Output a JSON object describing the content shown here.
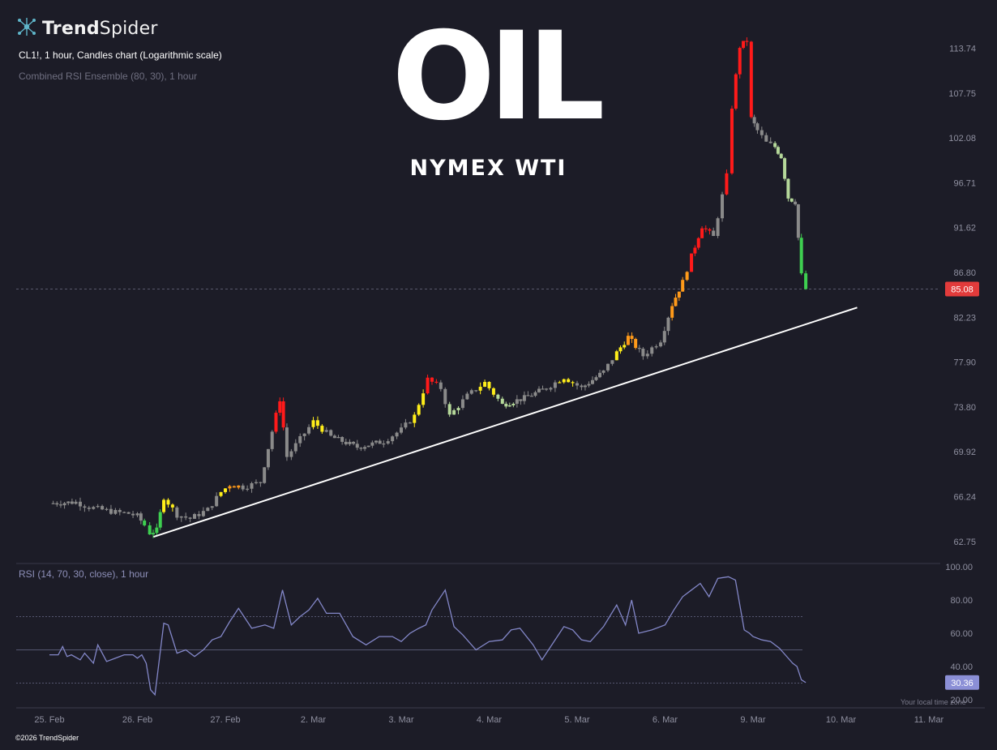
{
  "brand": {
    "name_bold": "Trend",
    "name_light": "Spider"
  },
  "header": {
    "chart_info": "CL1!, 1 hour, Candles chart (Logarithmic scale)",
    "indicator_info": "Combined RSI Ensemble (80, 30), 1 hour"
  },
  "overlay": {
    "title": "OIL",
    "subtitle": "NYMEX WTI"
  },
  "footer": {
    "copyright": "©2026 TrendSpider",
    "timezone_note": "Your local time zone"
  },
  "colors": {
    "background": "#1c1c27",
    "candle_neutral": "#8a8a8a",
    "candle_red": "#ff1a1a",
    "candle_orange": "#ff9a1a",
    "candle_yellow": "#ffee1a",
    "candle_green": "#3ecf50",
    "candle_lightgreen": "#b5d89a",
    "rsi_line": "#8387c8",
    "price_badge": "#e23b3b",
    "rsi_badge": "#8b8fd6"
  },
  "chart_data": [
    {
      "type": "candlestick",
      "title": "CL1!, 1 hour, Candles chart (Logarithmic scale)",
      "y_scale": "log",
      "y_ticks": [
        62.75,
        66.24,
        69.92,
        73.8,
        77.9,
        82.23,
        86.8,
        91.62,
        96.71,
        102.08,
        107.75,
        113.74
      ],
      "ylim": [
        61.4,
        118.0
      ],
      "x_ticks": [
        "25. Feb",
        "26. Feb",
        "27. Feb",
        "2. Mar",
        "3. Mar",
        "4. Mar",
        "5. Mar",
        "6. Mar",
        "9. Mar",
        "10. Mar",
        "11. Mar"
      ],
      "last_price": 85.08,
      "current_price_line": 85.08,
      "trendline": {
        "from": {
          "x": "26. Feb",
          "y": 63.1
        },
        "to": {
          "x": "10. Mar",
          "y": 83.2
        }
      },
      "path_points": [
        {
          "x": 0.0,
          "y": 65.7,
          "c": "n"
        },
        {
          "x": 0.3,
          "y": 65.8,
          "c": "n"
        },
        {
          "x": 0.45,
          "y": 65.4,
          "c": "n"
        },
        {
          "x": 0.6,
          "y": 65.2,
          "c": "n"
        },
        {
          "x": 0.75,
          "y": 65.0,
          "c": "n"
        },
        {
          "x": 0.9,
          "y": 64.9,
          "c": "n"
        },
        {
          "x": 1.0,
          "y": 64.7,
          "c": "n"
        },
        {
          "x": 1.08,
          "y": 64.0,
          "c": "g"
        },
        {
          "x": 1.14,
          "y": 63.4,
          "c": "g"
        },
        {
          "x": 1.22,
          "y": 63.6,
          "c": "g"
        },
        {
          "x": 1.3,
          "y": 66.2,
          "c": "y"
        },
        {
          "x": 1.45,
          "y": 64.8,
          "c": "n"
        },
        {
          "x": 1.6,
          "y": 64.5,
          "c": "n"
        },
        {
          "x": 1.8,
          "y": 65.2,
          "c": "n"
        },
        {
          "x": 1.95,
          "y": 66.6,
          "c": "y"
        },
        {
          "x": 2.05,
          "y": 67.2,
          "c": "o"
        },
        {
          "x": 2.2,
          "y": 67.0,
          "c": "n"
        },
        {
          "x": 2.4,
          "y": 67.4,
          "c": "n"
        },
        {
          "x": 2.62,
          "y": 74.5,
          "c": "r"
        },
        {
          "x": 2.7,
          "y": 69.5,
          "c": "n"
        },
        {
          "x": 2.85,
          "y": 71.0,
          "c": "n"
        },
        {
          "x": 3.0,
          "y": 72.5,
          "c": "y"
        },
        {
          "x": 3.2,
          "y": 71.2,
          "c": "n"
        },
        {
          "x": 3.5,
          "y": 70.3,
          "c": "n"
        },
        {
          "x": 3.8,
          "y": 70.8,
          "c": "n"
        },
        {
          "x": 4.0,
          "y": 71.8,
          "c": "n"
        },
        {
          "x": 4.15,
          "y": 73.0,
          "c": "y"
        },
        {
          "x": 4.3,
          "y": 76.3,
          "c": "r"
        },
        {
          "x": 4.45,
          "y": 75.5,
          "c": "n"
        },
        {
          "x": 4.55,
          "y": 73.0,
          "c": "lg"
        },
        {
          "x": 4.75,
          "y": 74.8,
          "c": "n"
        },
        {
          "x": 4.95,
          "y": 76.0,
          "c": "y"
        },
        {
          "x": 5.15,
          "y": 74.0,
          "c": "lg"
        },
        {
          "x": 5.4,
          "y": 74.6,
          "c": "n"
        },
        {
          "x": 5.65,
          "y": 75.5,
          "c": "n"
        },
        {
          "x": 5.85,
          "y": 76.5,
          "c": "y"
        },
        {
          "x": 6.05,
          "y": 75.5,
          "c": "n"
        },
        {
          "x": 6.3,
          "y": 77.0,
          "c": "n"
        },
        {
          "x": 6.45,
          "y": 78.8,
          "c": "y"
        },
        {
          "x": 6.58,
          "y": 80.3,
          "c": "o"
        },
        {
          "x": 6.75,
          "y": 78.5,
          "c": "n"
        },
        {
          "x": 6.95,
          "y": 80.0,
          "c": "n"
        },
        {
          "x": 7.08,
          "y": 83.5,
          "c": "o"
        },
        {
          "x": 7.2,
          "y": 85.8,
          "c": "o"
        },
        {
          "x": 7.3,
          "y": 88.5,
          "c": "r"
        },
        {
          "x": 7.42,
          "y": 91.8,
          "c": "r"
        },
        {
          "x": 7.55,
          "y": 90.6,
          "c": "n"
        },
        {
          "x": 7.7,
          "y": 97.5,
          "c": "r"
        },
        {
          "x": 7.76,
          "y": 106.0,
          "c": "r"
        },
        {
          "x": 7.85,
          "y": 114.0,
          "c": "r"
        },
        {
          "x": 7.93,
          "y": 114.8,
          "c": "r"
        },
        {
          "x": 7.98,
          "y": 104.5,
          "c": "n"
        },
        {
          "x": 8.05,
          "y": 103.0,
          "c": "n"
        },
        {
          "x": 8.15,
          "y": 101.5,
          "c": "n"
        },
        {
          "x": 8.25,
          "y": 101.0,
          "c": "lg"
        },
        {
          "x": 8.32,
          "y": 99.8,
          "c": "lg"
        },
        {
          "x": 8.4,
          "y": 95.0,
          "c": "lg"
        },
        {
          "x": 8.48,
          "y": 94.5,
          "c": "n"
        },
        {
          "x": 8.55,
          "y": 86.5,
          "c": "g"
        },
        {
          "x": 8.6,
          "y": 85.08,
          "c": "g"
        }
      ]
    },
    {
      "type": "line",
      "title": "RSI (14, 70, 30, close), 1 hour",
      "ylim": [
        20,
        100
      ],
      "y_ticks": [
        20.0,
        40.0,
        60.0,
        80.0,
        100.0
      ],
      "levels": [
        70,
        50,
        30
      ],
      "last_value": 30.36,
      "x": [
        0.0,
        0.1,
        0.15,
        0.2,
        0.25,
        0.35,
        0.4,
        0.5,
        0.55,
        0.65,
        0.75,
        0.85,
        0.95,
        1.0,
        1.05,
        1.1,
        1.15,
        1.2,
        1.3,
        1.35,
        1.45,
        1.55,
        1.65,
        1.75,
        1.85,
        1.95,
        2.05,
        2.15,
        2.3,
        2.45,
        2.55,
        2.65,
        2.75,
        2.85,
        2.95,
        3.05,
        3.15,
        3.3,
        3.45,
        3.6,
        3.75,
        3.9,
        4.0,
        4.1,
        4.2,
        4.28,
        4.35,
        4.5,
        4.6,
        4.7,
        4.85,
        5.0,
        5.15,
        5.25,
        5.35,
        5.5,
        5.6,
        5.7,
        5.85,
        5.95,
        6.05,
        6.15,
        6.3,
        6.45,
        6.55,
        6.62,
        6.7,
        6.85,
        7.0,
        7.1,
        7.2,
        7.3,
        7.4,
        7.5,
        7.6,
        7.72,
        7.8,
        7.9,
        7.96,
        8.0,
        8.1,
        8.2,
        8.3,
        8.4,
        8.45,
        8.5,
        8.55,
        8.6
      ],
      "y": [
        47,
        47,
        52,
        46,
        47,
        44,
        48,
        42,
        53,
        43,
        45,
        47,
        47,
        45,
        47,
        42,
        26,
        23,
        66,
        65,
        48,
        50,
        46,
        50,
        56,
        58,
        67,
        75,
        63,
        65,
        63,
        86,
        65,
        70,
        74,
        81,
        72,
        72,
        58,
        53,
        58,
        58,
        55,
        60,
        63,
        65,
        74,
        86,
        64,
        59,
        50,
        55,
        56,
        62,
        63,
        53,
        44,
        52,
        64,
        62,
        56,
        55,
        64,
        77,
        65,
        80,
        60,
        62,
        65,
        74,
        82,
        86,
        90,
        82,
        93,
        94,
        92,
        62,
        60,
        58,
        56,
        55,
        51,
        45,
        42,
        40,
        32,
        30.36
      ]
    }
  ]
}
